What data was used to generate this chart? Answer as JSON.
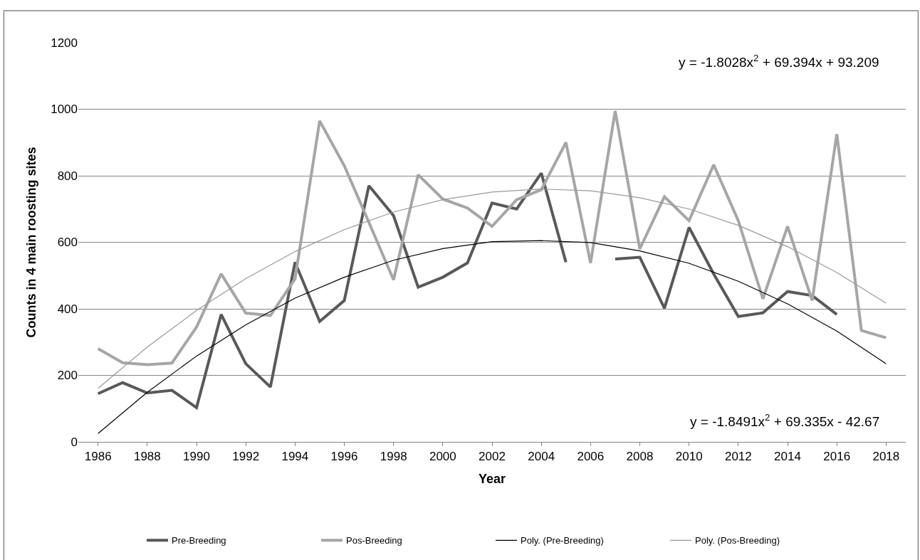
{
  "chart_data": {
    "type": "line",
    "xlabel": "Year",
    "ylabel": "Counts in 4 main roosting sites",
    "x": [
      1986,
      1987,
      1988,
      1989,
      1990,
      1991,
      1992,
      1993,
      1994,
      1995,
      1996,
      1997,
      1998,
      1999,
      2000,
      2001,
      2002,
      2003,
      2004,
      2005,
      2006,
      2007,
      2008,
      2009,
      2010,
      2011,
      2012,
      2013,
      2014,
      2015,
      2016,
      2017,
      2018
    ],
    "xlim": [
      1985.2,
      2018.8
    ],
    "xticks": [
      1986,
      1988,
      1990,
      1992,
      1994,
      1996,
      1998,
      2000,
      2002,
      2004,
      2006,
      2008,
      2010,
      2012,
      2014,
      2016,
      2018
    ],
    "ylim": [
      0,
      1200
    ],
    "yticks": [
      0,
      200,
      400,
      600,
      800,
      1000,
      1200
    ],
    "grid": "y",
    "legend": "bottom",
    "marker": "none",
    "line_style": "solid",
    "series": [
      {
        "name": "Pre-Breeding",
        "color": "#595959",
        "values": [
          145,
          178,
          147,
          155,
          103,
          383,
          235,
          165,
          540,
          362,
          425,
          770,
          680,
          465,
          495,
          538,
          718,
          700,
          808,
          540,
          null,
          550,
          555,
          402,
          645,
          505,
          377,
          388,
          452,
          440,
          383,
          null,
          null
        ]
      },
      {
        "name": "Pos-Breeding",
        "color": "#a6a6a6",
        "values": [
          280,
          238,
          232,
          237,
          345,
          505,
          387,
          380,
          490,
          965,
          830,
          660,
          487,
          803,
          730,
          703,
          648,
          728,
          758,
          900,
          538,
          995,
          580,
          737,
          665,
          833,
          665,
          430,
          648,
          425,
          925,
          335,
          313
        ]
      },
      {
        "name": "Poly. (Pre-Breeding)",
        "color": "#000000",
        "x": [
          1986,
          1988,
          1990,
          1992,
          1994,
          1996,
          1998,
          2000,
          2002,
          2004,
          2006,
          2008,
          2010,
          2012,
          2014,
          2016,
          2018
        ],
        "values": [
          25,
          149,
          258,
          352,
          432,
          495,
          546,
          581,
          602,
          605,
          599,
          574,
          537,
          483,
          415,
          333,
          235
        ]
      },
      {
        "name": "Poly. (Pos-Breeding)",
        "color": "#999999",
        "x": [
          1986,
          1988,
          1990,
          1992,
          1994,
          1996,
          1998,
          2000,
          2002,
          2004,
          2006,
          2008,
          2010,
          2012,
          2014,
          2016,
          2018
        ],
        "values": [
          161,
          285,
          395,
          491,
          572,
          638,
          691,
          728,
          751,
          760,
          755,
          734,
          700,
          651,
          587,
          509,
          417
        ]
      }
    ],
    "annotations": [
      "y = -1.8028x$^{2}$ + 69.394x + 93.209",
      "y = -1.8491x$^{2}$ + 69.335x - 42.67"
    ]
  }
}
